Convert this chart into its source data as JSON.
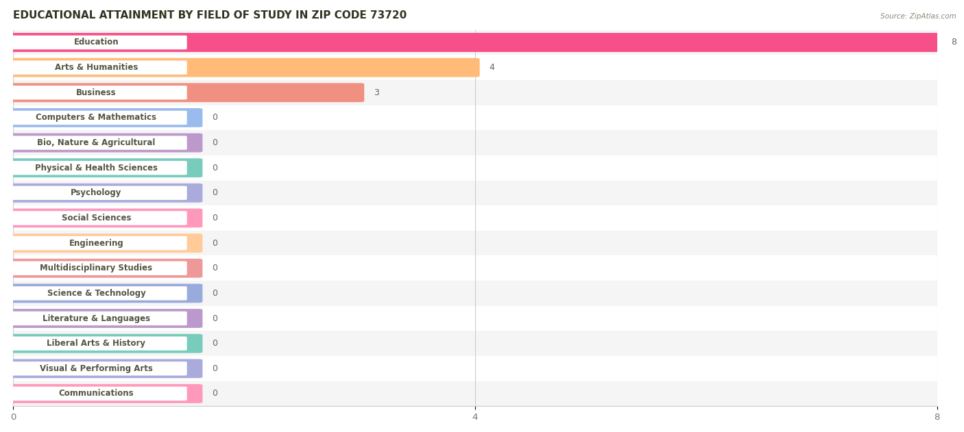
{
  "title": "EDUCATIONAL ATTAINMENT BY FIELD OF STUDY IN ZIP CODE 73720",
  "source": "Source: ZipAtlas.com",
  "categories": [
    "Education",
    "Arts & Humanities",
    "Business",
    "Computers & Mathematics",
    "Bio, Nature & Agricultural",
    "Physical & Health Sciences",
    "Psychology",
    "Social Sciences",
    "Engineering",
    "Multidisciplinary Studies",
    "Science & Technology",
    "Literature & Languages",
    "Liberal Arts & History",
    "Visual & Performing Arts",
    "Communications"
  ],
  "values": [
    8,
    4,
    3,
    0,
    0,
    0,
    0,
    0,
    0,
    0,
    0,
    0,
    0,
    0,
    0
  ],
  "bar_colors": [
    "#F74F8A",
    "#FFBB77",
    "#F09080",
    "#99BBEE",
    "#BB99CC",
    "#77CCBB",
    "#AAAADD",
    "#FF99BB",
    "#FFCC99",
    "#EE9999",
    "#99AADD",
    "#BB99CC",
    "#77CCBB",
    "#AAAADD",
    "#FF99BB"
  ],
  "min_bar_width": 1.6,
  "xlim": [
    0,
    8
  ],
  "xticks": [
    0,
    4,
    8
  ],
  "background_color": "#FFFFFF",
  "row_bg_colors": [
    "#F5F5F5",
    "#FFFFFF"
  ],
  "title_fontsize": 11,
  "label_fontsize": 8.5,
  "value_fontsize": 9
}
